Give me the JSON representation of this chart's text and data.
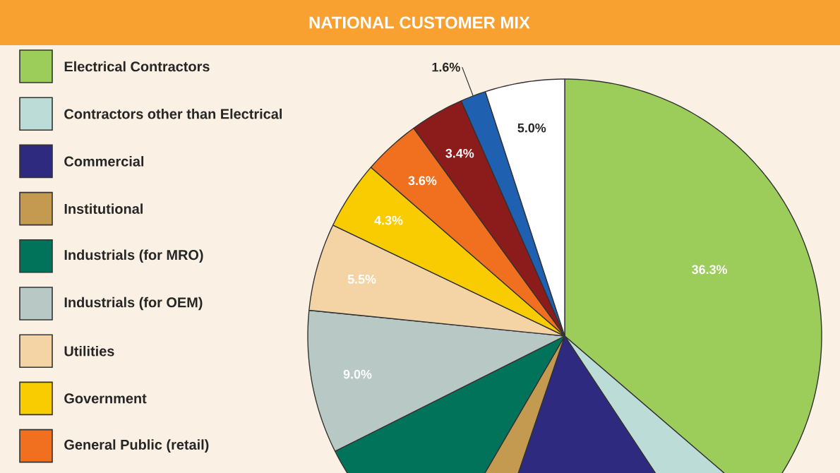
{
  "chart_data": {
    "type": "pie",
    "title": "NATIONAL CUSTOMER MIX",
    "categories": [
      "Electrical Contractors",
      "Contractors other than Electrical",
      "Commercial",
      "Institutional",
      "Industrials (for MRO)",
      "Industrials (for OEM)",
      "Utilities",
      "Government",
      "General  Public (retail)",
      null,
      null,
      null
    ],
    "values": [
      36.3,
      4.4,
      14.5,
      3.2,
      9.2,
      9.0,
      5.5,
      4.3,
      3.6,
      3.4,
      1.6,
      5.0
    ],
    "value_labels": [
      "36.3%",
      null,
      null,
      null,
      null,
      "9.0%",
      "5.5%",
      "4.3%",
      "3.6%",
      "3.4%",
      "1.6%",
      "5.0%"
    ],
    "colors": [
      "#9ccc5a",
      "#bcdcd8",
      "#2e2a80",
      "#c49a50",
      "#00735a",
      "#b8c8c4",
      "#f4d4a4",
      "#f8cc00",
      "#f07020",
      "#8c1c1c",
      "#2060b0",
      "#ffffff"
    ],
    "legend": "left"
  }
}
